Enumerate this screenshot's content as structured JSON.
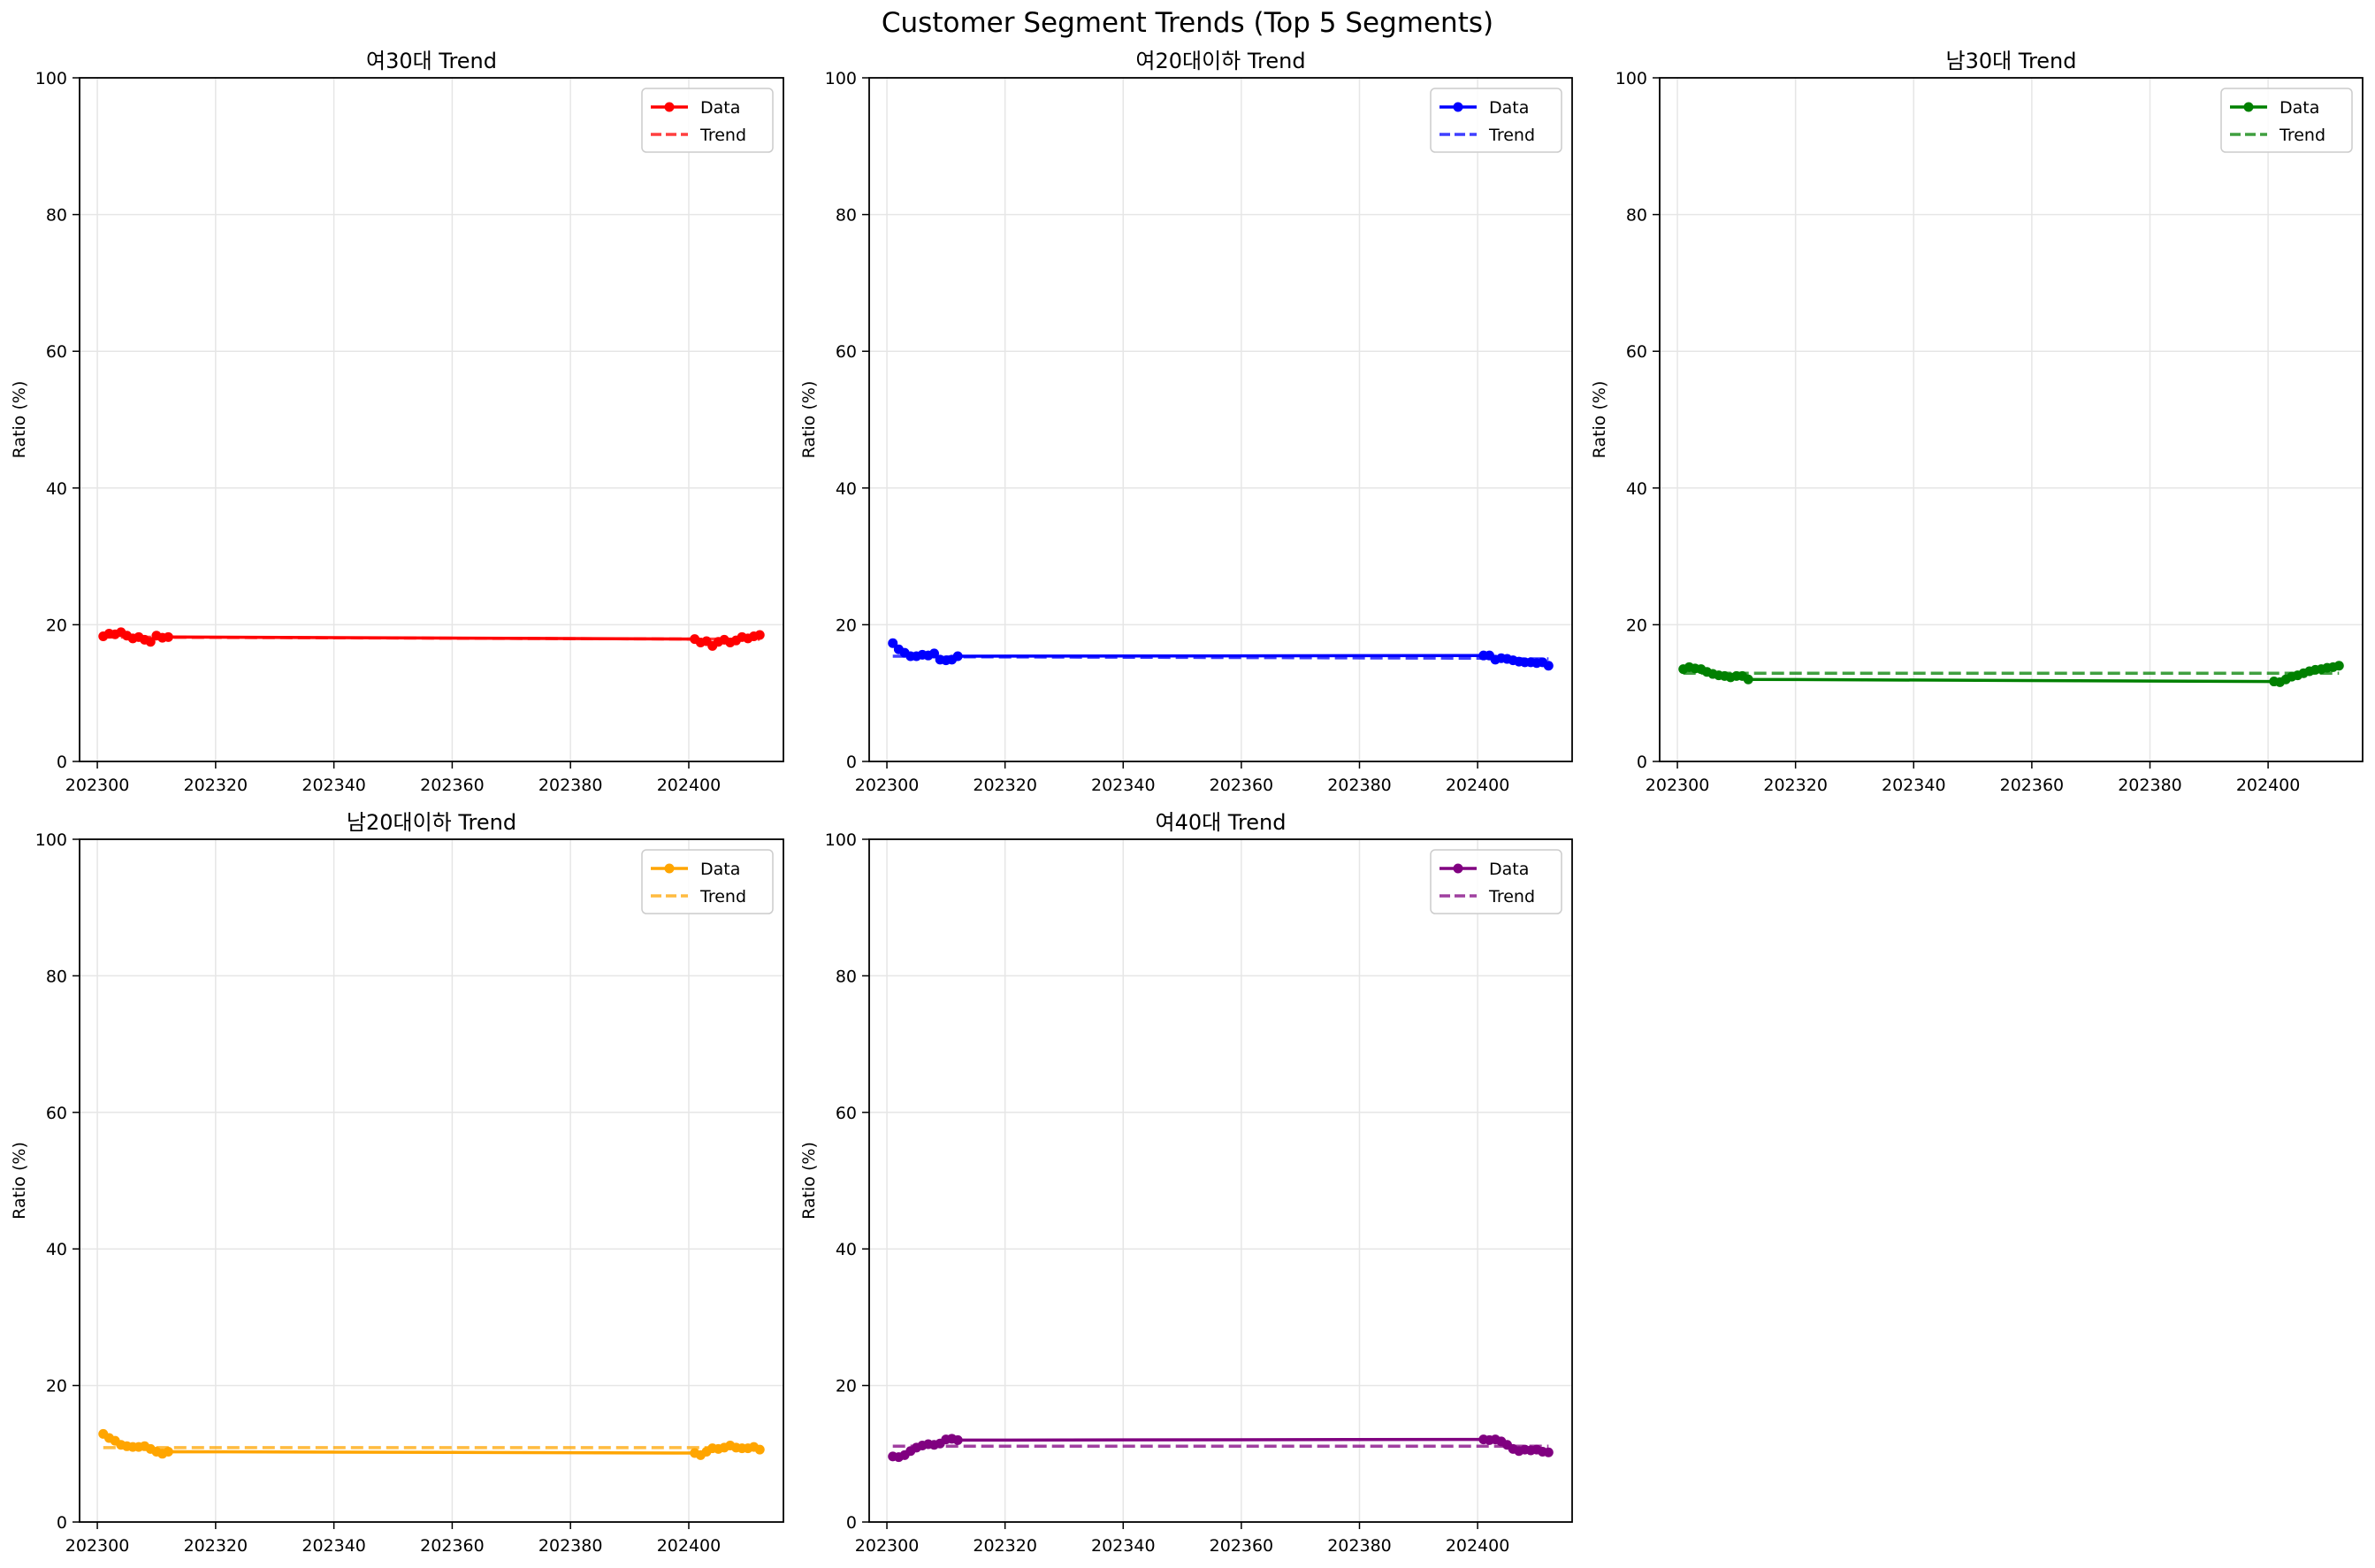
{
  "figure": {
    "title": "Customer Segment Trends (Top 5 Segments)"
  },
  "chart_data": [
    {
      "type": "line",
      "title": "여30대 Trend",
      "xlabel": "",
      "ylabel": "Ratio (%)",
      "xlim": [
        202297,
        202416
      ],
      "ylim": [
        0,
        100
      ],
      "xticks": [
        202300,
        202320,
        202340,
        202360,
        202380,
        202400
      ],
      "yticks": [
        0,
        20,
        40,
        60,
        80,
        100
      ],
      "grid": true,
      "legend": "top-right",
      "color": "#ff0000",
      "x": [
        202301,
        202302,
        202303,
        202304,
        202305,
        202306,
        202307,
        202308,
        202309,
        202310,
        202311,
        202312,
        202401,
        202402,
        202403,
        202404,
        202405,
        202406,
        202407,
        202408,
        202409,
        202410,
        202411,
        202412
      ],
      "series": [
        {
          "name": "Data",
          "style": "solid-markers",
          "values": [
            18.3,
            18.7,
            18.6,
            18.9,
            18.4,
            18.0,
            18.2,
            17.8,
            17.5,
            18.4,
            18.1,
            18.2,
            17.9,
            17.4,
            17.6,
            16.9,
            17.5,
            17.8,
            17.4,
            17.7,
            18.2,
            18.0,
            18.3,
            18.5
          ]
        },
        {
          "name": "Trend",
          "style": "dashed",
          "values": [
            18.2,
            18.19,
            18.19,
            18.19,
            18.18,
            18.18,
            18.18,
            18.17,
            18.17,
            18.17,
            18.16,
            18.16,
            17.91,
            17.91,
            17.91,
            17.9,
            17.9,
            17.9,
            17.89,
            17.89,
            17.89,
            17.88,
            17.88,
            17.88
          ]
        }
      ]
    },
    {
      "type": "line",
      "title": "여20대이하 Trend",
      "xlabel": "",
      "ylabel": "Ratio (%)",
      "xlim": [
        202297,
        202416
      ],
      "ylim": [
        0,
        100
      ],
      "xticks": [
        202300,
        202320,
        202340,
        202360,
        202380,
        202400
      ],
      "yticks": [
        0,
        20,
        40,
        60,
        80,
        100
      ],
      "grid": true,
      "legend": "top-right",
      "color": "#0000ff",
      "x": [
        202301,
        202302,
        202303,
        202304,
        202305,
        202306,
        202307,
        202308,
        202309,
        202310,
        202311,
        202312,
        202401,
        202402,
        202403,
        202404,
        202405,
        202406,
        202407,
        202408,
        202409,
        202410,
        202411,
        202412
      ],
      "series": [
        {
          "name": "Data",
          "style": "solid-markers",
          "values": [
            17.3,
            16.4,
            15.9,
            15.4,
            15.4,
            15.6,
            15.5,
            15.8,
            14.9,
            14.8,
            14.9,
            15.4,
            15.5,
            15.5,
            14.9,
            15.1,
            15.0,
            14.8,
            14.6,
            14.5,
            14.5,
            14.4,
            14.5,
            14.0
          ]
        },
        {
          "name": "Trend",
          "style": "dashed",
          "values": [
            15.4,
            15.4,
            15.4,
            15.4,
            15.4,
            15.4,
            15.3,
            15.3,
            15.3,
            15.3,
            15.3,
            15.3,
            15.1,
            15.1,
            15.1,
            15.1,
            15.1,
            15.1,
            15.0,
            15.0,
            15.0,
            15.0,
            15.0,
            15.0
          ]
        }
      ]
    },
    {
      "type": "line",
      "title": "남30대 Trend",
      "xlabel": "",
      "ylabel": "Ratio (%)",
      "xlim": [
        202297,
        202416
      ],
      "ylim": [
        0,
        100
      ],
      "xticks": [
        202300,
        202320,
        202340,
        202360,
        202380,
        202400
      ],
      "yticks": [
        0,
        20,
        40,
        60,
        80,
        100
      ],
      "grid": true,
      "legend": "top-right",
      "color": "#008000",
      "x": [
        202301,
        202302,
        202303,
        202304,
        202305,
        202306,
        202307,
        202308,
        202309,
        202310,
        202311,
        202312,
        202401,
        202402,
        202403,
        202404,
        202405,
        202406,
        202407,
        202408,
        202409,
        202410,
        202411,
        202412
      ],
      "series": [
        {
          "name": "Data",
          "style": "solid-markers",
          "values": [
            13.5,
            13.8,
            13.6,
            13.5,
            13.1,
            12.8,
            12.6,
            12.5,
            12.3,
            12.5,
            12.5,
            12.0,
            11.7,
            11.6,
            12.0,
            12.4,
            12.6,
            12.9,
            13.2,
            13.4,
            13.5,
            13.7,
            13.8,
            14.0
          ]
        },
        {
          "name": "Trend",
          "style": "dashed",
          "values": [
            12.9,
            12.9,
            12.9,
            12.9,
            12.9,
            12.9,
            12.9,
            12.9,
            12.9,
            12.9,
            12.9,
            12.9,
            12.9,
            12.9,
            12.9,
            12.9,
            12.9,
            12.9,
            12.9,
            12.9,
            12.9,
            12.9,
            12.9,
            12.9
          ]
        }
      ]
    },
    {
      "type": "line",
      "title": "남20대이하 Trend",
      "xlabel": "",
      "ylabel": "Ratio (%)",
      "xlim": [
        202297,
        202416
      ],
      "ylim": [
        0,
        100
      ],
      "xticks": [
        202300,
        202320,
        202340,
        202360,
        202380,
        202400
      ],
      "yticks": [
        0,
        20,
        40,
        60,
        80,
        100
      ],
      "grid": true,
      "legend": "top-right",
      "color": "#ffa500",
      "x": [
        202301,
        202302,
        202303,
        202304,
        202305,
        202306,
        202307,
        202308,
        202309,
        202310,
        202311,
        202312,
        202401,
        202402,
        202403,
        202404,
        202405,
        202406,
        202407,
        202408,
        202409,
        202410,
        202411,
        202412
      ],
      "series": [
        {
          "name": "Data",
          "style": "solid-markers",
          "values": [
            12.9,
            12.3,
            11.9,
            11.3,
            11.1,
            11.0,
            11.0,
            11.1,
            10.7,
            10.3,
            10.0,
            10.3,
            10.1,
            9.8,
            10.3,
            10.8,
            10.7,
            10.9,
            11.2,
            10.9,
            10.8,
            10.8,
            11.0,
            10.6
          ]
        },
        {
          "name": "Trend",
          "style": "dashed",
          "values": [
            10.9,
            10.9,
            10.9,
            10.9,
            10.9,
            10.9,
            10.9,
            10.9,
            10.9,
            10.9,
            10.9,
            10.9,
            10.9,
            10.9,
            10.9,
            10.9,
            10.9,
            10.9,
            10.9,
            10.9,
            10.9,
            10.9,
            10.9,
            10.9
          ]
        }
      ]
    },
    {
      "type": "line",
      "title": "여40대 Trend",
      "xlabel": "",
      "ylabel": "Ratio (%)",
      "xlim": [
        202297,
        202416
      ],
      "ylim": [
        0,
        100
      ],
      "xticks": [
        202300,
        202320,
        202340,
        202360,
        202380,
        202400
      ],
      "yticks": [
        0,
        20,
        40,
        60,
        80,
        100
      ],
      "grid": true,
      "legend": "top-right",
      "color": "#800080",
      "x": [
        202301,
        202302,
        202303,
        202304,
        202305,
        202306,
        202307,
        202308,
        202309,
        202310,
        202311,
        202312,
        202401,
        202402,
        202403,
        202404,
        202405,
        202406,
        202407,
        202408,
        202409,
        202410,
        202411,
        202412
      ],
      "series": [
        {
          "name": "Data",
          "style": "solid-markers",
          "values": [
            9.6,
            9.5,
            9.8,
            10.4,
            10.9,
            11.2,
            11.4,
            11.3,
            11.5,
            12.1,
            12.2,
            12.0,
            12.1,
            12.0,
            12.1,
            11.8,
            11.3,
            10.7,
            10.4,
            10.6,
            10.5,
            10.6,
            10.3,
            10.2
          ]
        },
        {
          "name": "Trend",
          "style": "dashed",
          "values": [
            11.1,
            11.1,
            11.1,
            11.1,
            11.1,
            11.1,
            11.1,
            11.1,
            11.1,
            11.1,
            11.1,
            11.1,
            11.1,
            11.1,
            11.1,
            11.1,
            11.1,
            11.1,
            11.1,
            11.1,
            11.1,
            11.1,
            11.1,
            11.1
          ]
        }
      ]
    }
  ]
}
